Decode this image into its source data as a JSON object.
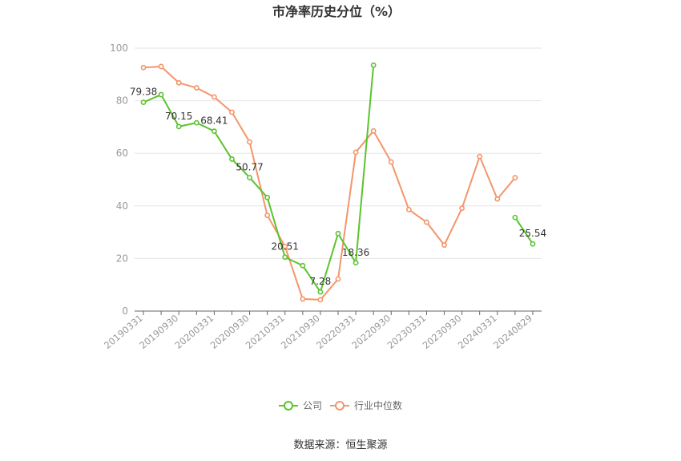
{
  "chart_data": {
    "type": "line",
    "title": "市净率历史分位（%）",
    "source": "数据来源：恒生聚源",
    "ylim": [
      0,
      100
    ],
    "y_ticks": [
      0,
      20,
      40,
      60,
      80,
      100
    ],
    "x_tick_labels": [
      "20190331",
      "20190930",
      "20200331",
      "20200930",
      "20210331",
      "20210930",
      "20220331",
      "20220930",
      "20230331",
      "20230930",
      "20240331",
      "20240829"
    ],
    "x": [
      "20190331",
      "20190630",
      "20190930",
      "20191231",
      "20200331",
      "20200630",
      "20200930",
      "20201231",
      "20210331",
      "20210630",
      "20210930",
      "20211231",
      "20220331",
      "20220630",
      "20220930",
      "20221231",
      "20230331",
      "20230630",
      "20230930",
      "20231231",
      "20240331",
      "20240630",
      "20240829"
    ],
    "grid": true,
    "legend_position": "bottom",
    "series": [
      {
        "name": "公司",
        "color": "#5ac32d",
        "values": [
          79.38,
          82.3,
          70.15,
          71.6,
          68.41,
          57.8,
          50.77,
          43.2,
          20.51,
          17.3,
          7.28,
          29.5,
          18.36,
          93.5,
          null,
          null,
          null,
          null,
          null,
          null,
          null,
          35.6,
          25.54
        ],
        "labels": {
          "0": "79.38",
          "2": "70.15",
          "4": "68.41",
          "6": "50.77",
          "8": "20.51",
          "10": "7.28",
          "12": "18.36",
          "22": "25.54"
        }
      },
      {
        "name": "行业中位数",
        "color": "#f4956a",
        "values": [
          92.6,
          93.0,
          86.8,
          84.9,
          81.4,
          75.6,
          64.3,
          36.4,
          24.6,
          4.6,
          4.3,
          12.2,
          60.4,
          68.5,
          56.7,
          38.6,
          33.8,
          25.1,
          39.1,
          58.8,
          42.6,
          50.7,
          null
        ]
      }
    ]
  }
}
